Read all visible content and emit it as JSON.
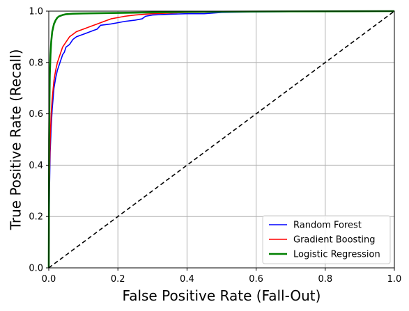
{
  "chart_data": {
    "type": "line",
    "title": "",
    "xlabel": "False Positive Rate (Fall-Out)",
    "ylabel": "True Positive Rate (Recall)",
    "xlim": [
      0,
      1
    ],
    "ylim": [
      0,
      1
    ],
    "xticks": [
      "0.0",
      "0.2",
      "0.4",
      "0.6",
      "0.8",
      "1.0"
    ],
    "yticks": [
      "0.0",
      "0.2",
      "0.4",
      "0.6",
      "0.8",
      "1.0"
    ],
    "grid": true,
    "legend_position": "lower right",
    "series": [
      {
        "name": "Random Forest",
        "color": "#0000ff",
        "points": [
          [
            0,
            0
          ],
          [
            0.002,
            0.3
          ],
          [
            0.004,
            0.45
          ],
          [
            0.007,
            0.55
          ],
          [
            0.01,
            0.62
          ],
          [
            0.015,
            0.7
          ],
          [
            0.02,
            0.74
          ],
          [
            0.025,
            0.77
          ],
          [
            0.03,
            0.79
          ],
          [
            0.035,
            0.81
          ],
          [
            0.04,
            0.83
          ],
          [
            0.045,
            0.84
          ],
          [
            0.05,
            0.86
          ],
          [
            0.06,
            0.87
          ],
          [
            0.07,
            0.89
          ],
          [
            0.08,
            0.9
          ],
          [
            0.09,
            0.905
          ],
          [
            0.1,
            0.91
          ],
          [
            0.12,
            0.92
          ],
          [
            0.13,
            0.925
          ],
          [
            0.14,
            0.93
          ],
          [
            0.15,
            0.945
          ],
          [
            0.18,
            0.95
          ],
          [
            0.2,
            0.955
          ],
          [
            0.22,
            0.96
          ],
          [
            0.25,
            0.965
          ],
          [
            0.27,
            0.97
          ],
          [
            0.28,
            0.98
          ],
          [
            0.3,
            0.985
          ],
          [
            0.35,
            0.988
          ],
          [
            0.4,
            0.99
          ],
          [
            0.45,
            0.99
          ],
          [
            0.5,
            0.995
          ],
          [
            0.6,
            0.997
          ],
          [
            0.8,
            0.999
          ],
          [
            1.0,
            1.0
          ]
        ]
      },
      {
        "name": "Gradient Boosting",
        "color": "#ff0000",
        "points": [
          [
            0,
            0
          ],
          [
            0.002,
            0.35
          ],
          [
            0.004,
            0.5
          ],
          [
            0.007,
            0.6
          ],
          [
            0.01,
            0.66
          ],
          [
            0.015,
            0.73
          ],
          [
            0.02,
            0.77
          ],
          [
            0.025,
            0.8
          ],
          [
            0.03,
            0.82
          ],
          [
            0.035,
            0.84
          ],
          [
            0.04,
            0.86
          ],
          [
            0.05,
            0.88
          ],
          [
            0.06,
            0.9
          ],
          [
            0.07,
            0.91
          ],
          [
            0.08,
            0.92
          ],
          [
            0.1,
            0.93
          ],
          [
            0.12,
            0.94
          ],
          [
            0.14,
            0.95
          ],
          [
            0.16,
            0.96
          ],
          [
            0.18,
            0.97
          ],
          [
            0.2,
            0.975
          ],
          [
            0.22,
            0.98
          ],
          [
            0.25,
            0.985
          ],
          [
            0.3,
            0.99
          ],
          [
            0.4,
            0.995
          ],
          [
            0.5,
            0.997
          ],
          [
            0.7,
            0.999
          ],
          [
            1.0,
            1.0
          ]
        ]
      },
      {
        "name": "Logistic Regression",
        "color": "#008000",
        "points": [
          [
            0,
            0
          ],
          [
            0.001,
            0.5
          ],
          [
            0.002,
            0.65
          ],
          [
            0.003,
            0.75
          ],
          [
            0.005,
            0.83
          ],
          [
            0.007,
            0.88
          ],
          [
            0.01,
            0.92
          ],
          [
            0.015,
            0.95
          ],
          [
            0.02,
            0.965
          ],
          [
            0.025,
            0.975
          ],
          [
            0.03,
            0.98
          ],
          [
            0.04,
            0.985
          ],
          [
            0.05,
            0.988
          ],
          [
            0.07,
            0.99
          ],
          [
            0.1,
            0.991
          ],
          [
            0.2,
            0.993
          ],
          [
            0.3,
            0.995
          ],
          [
            0.4,
            0.997
          ],
          [
            0.5,
            0.998
          ],
          [
            0.7,
            0.999
          ],
          [
            1.0,
            1.0
          ]
        ]
      },
      {
        "name": "",
        "color": "#000000",
        "dashed": true,
        "points": [
          [
            0,
            0
          ],
          [
            1,
            1
          ]
        ]
      }
    ]
  }
}
